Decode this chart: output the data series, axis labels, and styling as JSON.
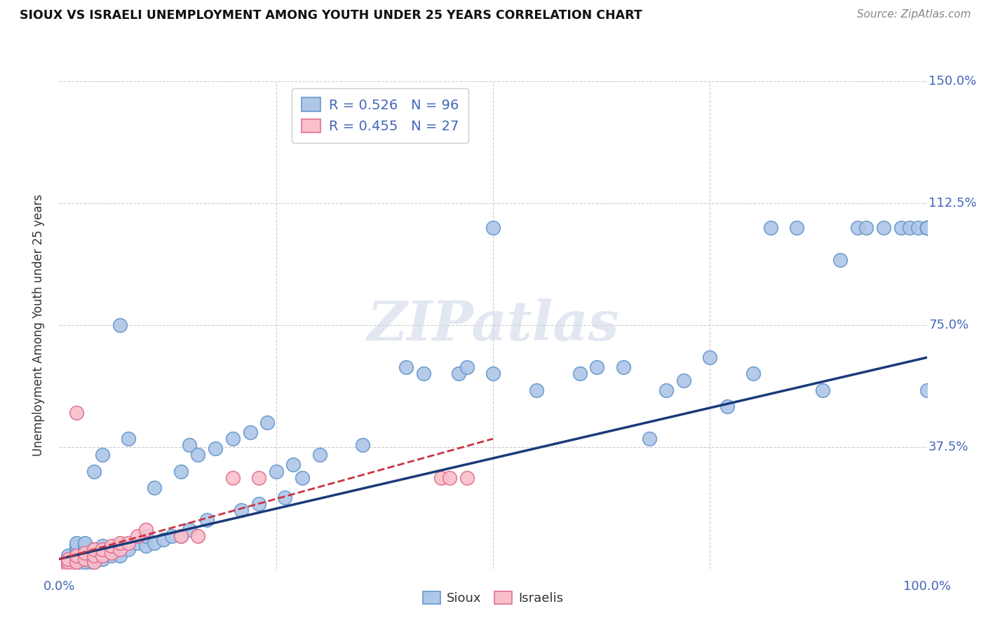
{
  "title": "SIOUX VS ISRAELI UNEMPLOYMENT AMONG YOUTH UNDER 25 YEARS CORRELATION CHART",
  "source": "Source: ZipAtlas.com",
  "ylabel": "Unemployment Among Youth under 25 years",
  "xlim": [
    0.0,
    1.0
  ],
  "ylim": [
    0.0,
    1.5
  ],
  "sioux_color": "#aec6e8",
  "sioux_edge_color": "#6699cc",
  "israelis_color": "#f9c0cb",
  "israelis_edge_color": "#e07090",
  "sioux_line_color": "#1a3a7a",
  "israelis_line_color": "#cc3344",
  "tick_color": "#4466bb",
  "background_color": "#ffffff",
  "grid_color": "#cccccc",
  "sioux_x": [
    0.01,
    0.01,
    0.01,
    0.01,
    0.02,
    0.02,
    0.02,
    0.02,
    0.02,
    0.02,
    0.02,
    0.02,
    0.03,
    0.03,
    0.03,
    0.03,
    0.03,
    0.03,
    0.03,
    0.04,
    0.04,
    0.04,
    0.04,
    0.04,
    0.05,
    0.05,
    0.05,
    0.05,
    0.06,
    0.06,
    0.07,
    0.07,
    0.07,
    0.08,
    0.08,
    0.09,
    0.1,
    0.1,
    0.11,
    0.11,
    0.12,
    0.13,
    0.14,
    0.14,
    0.15,
    0.15,
    0.16,
    0.17,
    0.18,
    0.2,
    0.21,
    0.22,
    0.23,
    0.24,
    0.25,
    0.26,
    0.27,
    0.28,
    0.3,
    0.35,
    0.4,
    0.42,
    0.46,
    0.47,
    0.5,
    0.5,
    0.55,
    0.6,
    0.62,
    0.65,
    0.68,
    0.7,
    0.72,
    0.75,
    0.77,
    0.8,
    0.82,
    0.85,
    0.88,
    0.9,
    0.92,
    0.93,
    0.95,
    0.97,
    0.98,
    0.99,
    1.0,
    1.0,
    1.0,
    1.0,
    1.0,
    1.0,
    1.0,
    1.0,
    1.0,
    1.0
  ],
  "sioux_y": [
    0.01,
    0.02,
    0.03,
    0.04,
    0.01,
    0.02,
    0.03,
    0.04,
    0.05,
    0.06,
    0.07,
    0.08,
    0.01,
    0.02,
    0.03,
    0.04,
    0.05,
    0.07,
    0.08,
    0.02,
    0.03,
    0.04,
    0.06,
    0.3,
    0.03,
    0.05,
    0.07,
    0.35,
    0.04,
    0.06,
    0.04,
    0.07,
    0.75,
    0.06,
    0.4,
    0.08,
    0.07,
    0.1,
    0.08,
    0.25,
    0.09,
    0.1,
    0.1,
    0.3,
    0.12,
    0.38,
    0.35,
    0.15,
    0.37,
    0.4,
    0.18,
    0.42,
    0.2,
    0.45,
    0.3,
    0.22,
    0.32,
    0.28,
    0.35,
    0.38,
    0.62,
    0.6,
    0.6,
    0.62,
    0.6,
    1.05,
    0.55,
    0.6,
    0.62,
    0.62,
    0.4,
    0.55,
    0.58,
    0.65,
    0.5,
    0.6,
    1.05,
    1.05,
    0.55,
    0.95,
    1.05,
    1.05,
    1.05,
    1.05,
    1.05,
    1.05,
    0.55,
    1.05,
    1.05,
    1.05,
    1.05,
    1.05,
    1.05,
    1.05,
    1.05,
    1.05
  ],
  "israelis_x": [
    0.01,
    0.01,
    0.01,
    0.02,
    0.02,
    0.02,
    0.03,
    0.03,
    0.04,
    0.04,
    0.04,
    0.05,
    0.05,
    0.06,
    0.06,
    0.07,
    0.07,
    0.08,
    0.09,
    0.1,
    0.14,
    0.16,
    0.2,
    0.23,
    0.44,
    0.45,
    0.47
  ],
  "israelis_y": [
    0.01,
    0.02,
    0.03,
    0.02,
    0.04,
    0.48,
    0.03,
    0.05,
    0.02,
    0.04,
    0.06,
    0.04,
    0.06,
    0.05,
    0.07,
    0.06,
    0.08,
    0.08,
    0.1,
    0.12,
    0.1,
    0.1,
    0.28,
    0.28,
    0.28,
    0.28,
    0.28
  ],
  "sioux_line_x": [
    0.0,
    1.0
  ],
  "sioux_line_y": [
    0.03,
    0.65
  ],
  "israelis_line_x": [
    0.0,
    0.5
  ],
  "israelis_line_y": [
    0.03,
    0.4
  ]
}
